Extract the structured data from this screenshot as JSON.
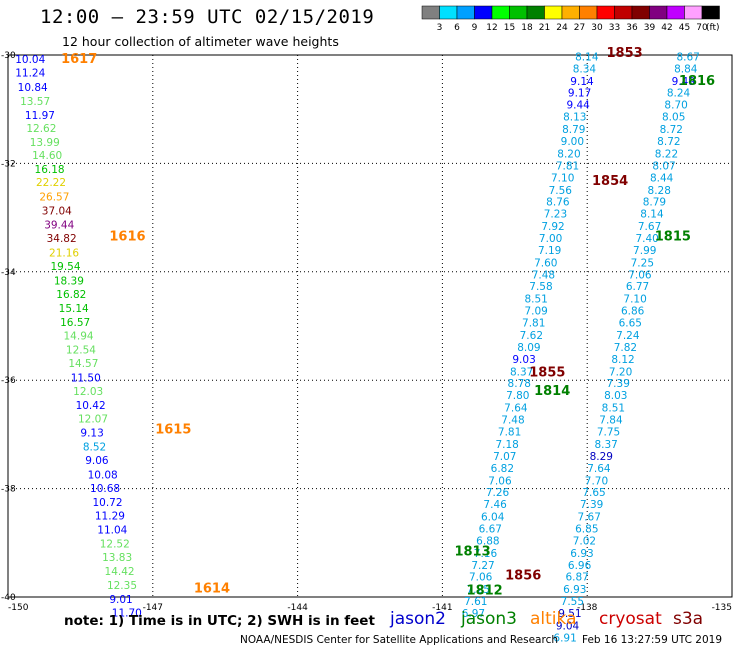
{
  "header": {
    "title": "12:00 — 23:59 UTC 02/15/2019",
    "subtitle": "12 hour collection of altimeter wave heights"
  },
  "colorbar": {
    "colors": [
      "#808080",
      "#00e0ff",
      "#00a0ff",
      "#0000ff",
      "#00ff00",
      "#00c000",
      "#008000",
      "#ffff00",
      "#ffb000",
      "#ff8000",
      "#ff0000",
      "#c00000",
      "#800000",
      "#800080",
      "#c000ff",
      "#ffa0ff",
      "#000000"
    ],
    "labels": [
      "3",
      "6",
      "9",
      "12",
      "15",
      "18",
      "21",
      "24",
      "27",
      "30",
      "33",
      "36",
      "39",
      "42",
      "45",
      "70"
    ],
    "unit": "(ft)"
  },
  "footer": {
    "note": "note: 1) Time is in UTC; 2) SWH is in feet",
    "credit": "NOAA/NESDIS Center for Satellite Applications and Research",
    "timestamp": "Feb 16 13:27:59 UTC 2019",
    "satellites": [
      {
        "name": "jason2",
        "color": "#0000cc"
      },
      {
        "name": "jason3",
        "color": "#008000"
      },
      {
        "name": "altika",
        "color": "#ff8000"
      },
      {
        "name": "cryosat",
        "color": "#cc0000"
      },
      {
        "name": "s3a",
        "color": "#800000"
      }
    ]
  },
  "chart_data": {
    "type": "scatter",
    "title": "12 hour collection of altimeter wave heights",
    "xlim": [
      -150,
      -135
    ],
    "ylim": [
      -40,
      -30
    ],
    "xticks": [
      "-150",
      "-147",
      "-144",
      "-141",
      "-138",
      "-135"
    ],
    "yticks": [
      "-30",
      "-32",
      "-34",
      "-36",
      "-38",
      "-40"
    ],
    "grid": true,
    "colors": {
      "blue": "#0000ff",
      "navy": "#0000c0",
      "cyan": "#00a0e0",
      "lime": "#66e060",
      "green": "#00c000",
      "yellow": "#e0d000",
      "gold": "#ffa000",
      "orange": "#ff8000",
      "darkred": "#800000",
      "purple": "#800080",
      "jason3": "#008000"
    },
    "time_labels": [
      {
        "text": "1617",
        "x": -148.9,
        "y": -30.15,
        "color": "orange"
      },
      {
        "text": "1616",
        "x": -147.9,
        "y": -33.42,
        "color": "orange"
      },
      {
        "text": "1615",
        "x": -146.95,
        "y": -36.98,
        "color": "orange"
      },
      {
        "text": "1614",
        "x": -146.15,
        "y": -39.92,
        "color": "orange"
      },
      {
        "text": "1853",
        "x": -137.6,
        "y": -30.04,
        "color": "darkred"
      },
      {
        "text": "1854",
        "x": -137.9,
        "y": -32.4,
        "color": "darkred"
      },
      {
        "text": "1855",
        "x": -139.2,
        "y": -35.93,
        "color": "darkred"
      },
      {
        "text": "1856",
        "x": -139.7,
        "y": -39.68,
        "color": "darkred"
      },
      {
        "text": "1816",
        "x": -136.1,
        "y": -30.55,
        "color": "jason3"
      },
      {
        "text": "1815",
        "x": -136.6,
        "y": -33.42,
        "color": "jason3"
      },
      {
        "text": "1814",
        "x": -139.1,
        "y": -36.27,
        "color": "jason3"
      },
      {
        "text": "1813",
        "x": -140.75,
        "y": -39.23,
        "color": "jason3"
      },
      {
        "text": "1812",
        "x": -140.5,
        "y": -39.95,
        "color": "jason3"
      }
    ],
    "altika_track": [
      {
        "v": "10.04",
        "x": -149.85,
        "y": -30.15,
        "c": "blue"
      },
      {
        "v": "11.24",
        "x": -149.85,
        "y": -30.4,
        "c": "blue"
      },
      {
        "v": "10.84",
        "x": -149.8,
        "y": -30.66,
        "c": "blue"
      },
      {
        "v": "13.57",
        "x": -149.75,
        "y": -30.92,
        "c": "lime"
      },
      {
        "v": "11.97",
        "x": -149.65,
        "y": -31.18,
        "c": "blue"
      },
      {
        "v": "12.62",
        "x": -149.62,
        "y": -31.42,
        "c": "lime"
      },
      {
        "v": "13.99",
        "x": -149.55,
        "y": -31.68,
        "c": "lime"
      },
      {
        "v": "14.60",
        "x": -149.5,
        "y": -31.92,
        "c": "lime"
      },
      {
        "v": "16.18",
        "x": -149.45,
        "y": -32.18,
        "c": "green"
      },
      {
        "v": "22.22",
        "x": -149.42,
        "y": -32.42,
        "c": "yellow"
      },
      {
        "v": "26.57",
        "x": -149.35,
        "y": -32.68,
        "c": "gold"
      },
      {
        "v": "37.04",
        "x": -149.3,
        "y": -32.94,
        "c": "darkred"
      },
      {
        "v": "39.44",
        "x": -149.25,
        "y": -33.2,
        "c": "purple"
      },
      {
        "v": "34.82",
        "x": -149.2,
        "y": -33.45,
        "c": "darkred"
      },
      {
        "v": "21.16",
        "x": -149.15,
        "y": -33.72,
        "c": "yellow"
      },
      {
        "v": "19.54",
        "x": -149.12,
        "y": -33.97,
        "c": "green"
      },
      {
        "v": "18.39",
        "x": -149.05,
        "y": -34.23,
        "c": "green"
      },
      {
        "v": "16.82",
        "x": -149.0,
        "y": -34.48,
        "c": "green"
      },
      {
        "v": "15.14",
        "x": -148.95,
        "y": -34.74,
        "c": "green"
      },
      {
        "v": "16.57",
        "x": -148.92,
        "y": -35.0,
        "c": "green"
      },
      {
        "v": "14.94",
        "x": -148.85,
        "y": -35.25,
        "c": "lime"
      },
      {
        "v": "12.54",
        "x": -148.8,
        "y": -35.51,
        "c": "lime"
      },
      {
        "v": "14.57",
        "x": -148.75,
        "y": -35.76,
        "c": "lime"
      },
      {
        "v": "11.50",
        "x": -148.7,
        "y": -36.02,
        "c": "blue"
      },
      {
        "v": "12.03",
        "x": -148.65,
        "y": -36.27,
        "c": "lime"
      },
      {
        "v": "10.42",
        "x": -148.6,
        "y": -36.53,
        "c": "blue"
      },
      {
        "v": "12.07",
        "x": -148.55,
        "y": -36.78,
        "c": "lime"
      },
      {
        "v": "9.13",
        "x": -148.5,
        "y": -37.04,
        "c": "blue"
      },
      {
        "v": "8.52",
        "x": -148.45,
        "y": -37.3,
        "c": "cyan"
      },
      {
        "v": "9.06",
        "x": -148.4,
        "y": -37.55,
        "c": "blue"
      },
      {
        "v": "10.08",
        "x": -148.35,
        "y": -37.81,
        "c": "blue"
      },
      {
        "v": "10.68",
        "x": -148.3,
        "y": -38.06,
        "c": "blue"
      },
      {
        "v": "10.72",
        "x": -148.25,
        "y": -38.32,
        "c": "blue"
      },
      {
        "v": "11.29",
        "x": -148.2,
        "y": -38.57,
        "c": "blue"
      },
      {
        "v": "11.04",
        "x": -148.15,
        "y": -38.83,
        "c": "blue"
      },
      {
        "v": "12.52",
        "x": -148.1,
        "y": -39.09,
        "c": "lime"
      },
      {
        "v": "13.83",
        "x": -148.05,
        "y": -39.34,
        "c": "lime"
      },
      {
        "v": "14.42",
        "x": -148.0,
        "y": -39.59,
        "c": "lime"
      },
      {
        "v": "12.35",
        "x": -147.95,
        "y": -39.85,
        "c": "lime"
      },
      {
        "v": "9.01",
        "x": -147.9,
        "y": -40.11,
        "c": "blue"
      },
      {
        "v": "11.70",
        "x": -147.85,
        "y": -40.36,
        "c": "blue"
      }
    ],
    "cryosat_track": [
      {
        "v": "8.14",
        "x": -138.25,
        "y": -30.1,
        "c": "cyan"
      },
      {
        "v": "8.34",
        "x": -138.3,
        "y": -30.32,
        "c": "cyan"
      },
      {
        "v": "9.14",
        "x": -138.35,
        "y": -30.55,
        "c": "blue"
      },
      {
        "v": "9.17",
        "x": -138.4,
        "y": -30.77,
        "c": "blue"
      },
      {
        "v": "9.44",
        "x": -138.43,
        "y": -30.99,
        "c": "blue"
      },
      {
        "v": "8.13",
        "x": -138.5,
        "y": -31.21,
        "c": "cyan"
      },
      {
        "v": "8.79",
        "x": -138.52,
        "y": -31.44,
        "c": "cyan"
      },
      {
        "v": "9.00",
        "x": -138.55,
        "y": -31.66,
        "c": "cyan"
      },
      {
        "v": "8.20",
        "x": -138.62,
        "y": -31.89,
        "c": "cyan"
      },
      {
        "v": "7.81",
        "x": -138.65,
        "y": -32.11,
        "c": "cyan"
      },
      {
        "v": "7.10",
        "x": -138.75,
        "y": -32.33,
        "c": "cyan"
      },
      {
        "v": "7.56",
        "x": -138.8,
        "y": -32.56,
        "c": "cyan"
      },
      {
        "v": "8.76",
        "x": -138.85,
        "y": -32.78,
        "c": "cyan"
      },
      {
        "v": "7.23",
        "x": -138.9,
        "y": -33.0,
        "c": "cyan"
      },
      {
        "v": "7.92",
        "x": -138.95,
        "y": -33.23,
        "c": "cyan"
      },
      {
        "v": "7.00",
        "x": -139.0,
        "y": -33.45,
        "c": "cyan"
      },
      {
        "v": "7.19",
        "x": -139.02,
        "y": -33.67,
        "c": "cyan"
      },
      {
        "v": "7.60",
        "x": -139.1,
        "y": -33.9,
        "c": "cyan"
      },
      {
        "v": "7.48",
        "x": -139.15,
        "y": -34.12,
        "c": "cyan"
      },
      {
        "v": "7.58",
        "x": -139.2,
        "y": -34.34,
        "c": "cyan"
      },
      {
        "v": "8.51",
        "x": -139.3,
        "y": -34.57,
        "c": "cyan"
      },
      {
        "v": "7.09",
        "x": -139.3,
        "y": -34.79,
        "c": "cyan"
      },
      {
        "v": "7.81",
        "x": -139.35,
        "y": -35.01,
        "c": "cyan"
      },
      {
        "v": "7.62",
        "x": -139.4,
        "y": -35.24,
        "c": "cyan"
      },
      {
        "v": "8.09",
        "x": -139.45,
        "y": -35.46,
        "c": "cyan"
      },
      {
        "v": "9.03",
        "x": -139.55,
        "y": -35.68,
        "c": "blue"
      },
      {
        "v": "8.37",
        "x": -139.6,
        "y": -35.91,
        "c": "cyan"
      },
      {
        "v": "8.78",
        "x": -139.65,
        "y": -36.13,
        "c": "cyan"
      },
      {
        "v": "7.80",
        "x": -139.68,
        "y": -36.35,
        "c": "cyan"
      },
      {
        "v": "7.64",
        "x": -139.72,
        "y": -36.58,
        "c": "cyan"
      },
      {
        "v": "7.48",
        "x": -139.78,
        "y": -36.8,
        "c": "cyan"
      },
      {
        "v": "7.81",
        "x": -139.85,
        "y": -37.02,
        "c": "cyan"
      },
      {
        "v": "7.18",
        "x": -139.9,
        "y": -37.25,
        "c": "cyan"
      },
      {
        "v": "7.07",
        "x": -139.95,
        "y": -37.47,
        "c": "cyan"
      },
      {
        "v": "6.82",
        "x": -140.0,
        "y": -37.69,
        "c": "cyan"
      },
      {
        "v": "7.06",
        "x": -140.05,
        "y": -37.92,
        "c": "cyan"
      },
      {
        "v": "7.26",
        "x": -140.1,
        "y": -38.14,
        "c": "cyan"
      },
      {
        "v": "7.46",
        "x": -140.15,
        "y": -38.36,
        "c": "cyan"
      },
      {
        "v": "6.04",
        "x": -140.2,
        "y": -38.59,
        "c": "cyan"
      },
      {
        "v": "6.67",
        "x": -140.25,
        "y": -38.81,
        "c": "cyan"
      },
      {
        "v": "6.88",
        "x": -140.3,
        "y": -39.03,
        "c": "cyan"
      },
      {
        "v": "7.16",
        "x": -140.35,
        "y": -39.26,
        "c": "cyan"
      },
      {
        "v": "7.27",
        "x": -140.4,
        "y": -39.48,
        "c": "cyan"
      },
      {
        "v": "7.06",
        "x": -140.45,
        "y": -39.7,
        "c": "cyan"
      },
      {
        "v": "7.25",
        "x": -140.5,
        "y": -39.93,
        "c": "cyan"
      },
      {
        "v": "7.61",
        "x": -140.55,
        "y": -40.15,
        "c": "cyan"
      },
      {
        "v": "6.97",
        "x": -140.6,
        "y": -40.37,
        "c": "cyan"
      }
    ],
    "jason3_track": [
      {
        "v": "8.67",
        "x": -136.15,
        "y": -30.1,
        "c": "cyan"
      },
      {
        "v": "8.84",
        "x": -136.2,
        "y": -30.32,
        "c": "cyan"
      },
      {
        "v": "9.49",
        "x": -136.25,
        "y": -30.55,
        "c": "blue"
      },
      {
        "v": "8.24",
        "x": -136.35,
        "y": -30.77,
        "c": "cyan"
      },
      {
        "v": "8.70",
        "x": -136.4,
        "y": -30.99,
        "c": "cyan"
      },
      {
        "v": "8.05",
        "x": -136.45,
        "y": -31.21,
        "c": "cyan"
      },
      {
        "v": "8.72",
        "x": -136.5,
        "y": -31.44,
        "c": "cyan"
      },
      {
        "v": "8.72",
        "x": -136.55,
        "y": -31.66,
        "c": "cyan"
      },
      {
        "v": "8.22",
        "x": -136.6,
        "y": -31.89,
        "c": "cyan"
      },
      {
        "v": "8.07",
        "x": -136.65,
        "y": -32.11,
        "c": "cyan"
      },
      {
        "v": "8.44",
        "x": -136.7,
        "y": -32.33,
        "c": "cyan"
      },
      {
        "v": "8.28",
        "x": -136.75,
        "y": -32.56,
        "c": "cyan"
      },
      {
        "v": "8.79",
        "x": -136.85,
        "y": -32.78,
        "c": "cyan"
      },
      {
        "v": "8.14",
        "x": -136.9,
        "y": -33.0,
        "c": "cyan"
      },
      {
        "v": "7.67",
        "x": -136.95,
        "y": -33.23,
        "c": "cyan"
      },
      {
        "v": "7.40",
        "x": -137.0,
        "y": -33.45,
        "c": "cyan"
      },
      {
        "v": "7.99",
        "x": -137.05,
        "y": -33.67,
        "c": "cyan"
      },
      {
        "v": "7.25",
        "x": -137.1,
        "y": -33.9,
        "c": "cyan"
      },
      {
        "v": "7.06",
        "x": -137.15,
        "y": -34.12,
        "c": "cyan"
      },
      {
        "v": "6.77",
        "x": -137.2,
        "y": -34.34,
        "c": "cyan"
      },
      {
        "v": "7.10",
        "x": -137.25,
        "y": -34.57,
        "c": "cyan"
      },
      {
        "v": "6.86",
        "x": -137.3,
        "y": -34.79,
        "c": "cyan"
      },
      {
        "v": "6.65",
        "x": -137.35,
        "y": -35.01,
        "c": "cyan"
      },
      {
        "v": "7.24",
        "x": -137.4,
        "y": -35.24,
        "c": "cyan"
      },
      {
        "v": "7.82",
        "x": -137.45,
        "y": -35.46,
        "c": "cyan"
      },
      {
        "v": "8.12",
        "x": -137.5,
        "y": -35.68,
        "c": "cyan"
      },
      {
        "v": "7.20",
        "x": -137.55,
        "y": -35.91,
        "c": "cyan"
      },
      {
        "v": "7.39",
        "x": -137.6,
        "y": -36.13,
        "c": "cyan"
      },
      {
        "v": "8.03",
        "x": -137.65,
        "y": -36.35,
        "c": "cyan"
      },
      {
        "v": "8.51",
        "x": -137.7,
        "y": -36.58,
        "c": "cyan"
      },
      {
        "v": "7.84",
        "x": -137.75,
        "y": -36.8,
        "c": "cyan"
      },
      {
        "v": "7.75",
        "x": -137.8,
        "y": -37.02,
        "c": "cyan"
      },
      {
        "v": "8.37",
        "x": -137.85,
        "y": -37.25,
        "c": "cyan"
      },
      {
        "v": "8.29",
        "x": -137.95,
        "y": -37.47,
        "c": "navy"
      },
      {
        "v": "7.64",
        "x": -138.0,
        "y": -37.69,
        "c": "cyan"
      },
      {
        "v": "7.70",
        "x": -138.05,
        "y": -37.92,
        "c": "cyan"
      },
      {
        "v": "7.65",
        "x": -138.1,
        "y": -38.14,
        "c": "cyan"
      },
      {
        "v": "7.39",
        "x": -138.15,
        "y": -38.36,
        "c": "cyan"
      },
      {
        "v": "7.67",
        "x": -138.2,
        "y": -38.59,
        "c": "cyan"
      },
      {
        "v": "6.85",
        "x": -138.25,
        "y": -38.81,
        "c": "cyan"
      },
      {
        "v": "7.02",
        "x": -138.3,
        "y": -39.03,
        "c": "cyan"
      },
      {
        "v": "6.93",
        "x": -138.35,
        "y": -39.26,
        "c": "cyan"
      },
      {
        "v": "6.96",
        "x": -138.4,
        "y": -39.48,
        "c": "cyan"
      },
      {
        "v": "6.87",
        "x": -138.45,
        "y": -39.7,
        "c": "cyan"
      },
      {
        "v": "6.93",
        "x": -138.5,
        "y": -39.93,
        "c": "cyan"
      },
      {
        "v": "7.55",
        "x": -138.55,
        "y": -40.15,
        "c": "cyan"
      },
      {
        "v": "9.51",
        "x": -138.6,
        "y": -40.37,
        "c": "navy"
      },
      {
        "v": "9.04",
        "x": -138.65,
        "y": -40.6,
        "c": "navy"
      },
      {
        "v": "6.91",
        "x": -138.7,
        "y": -40.82,
        "c": "cyan"
      }
    ]
  }
}
